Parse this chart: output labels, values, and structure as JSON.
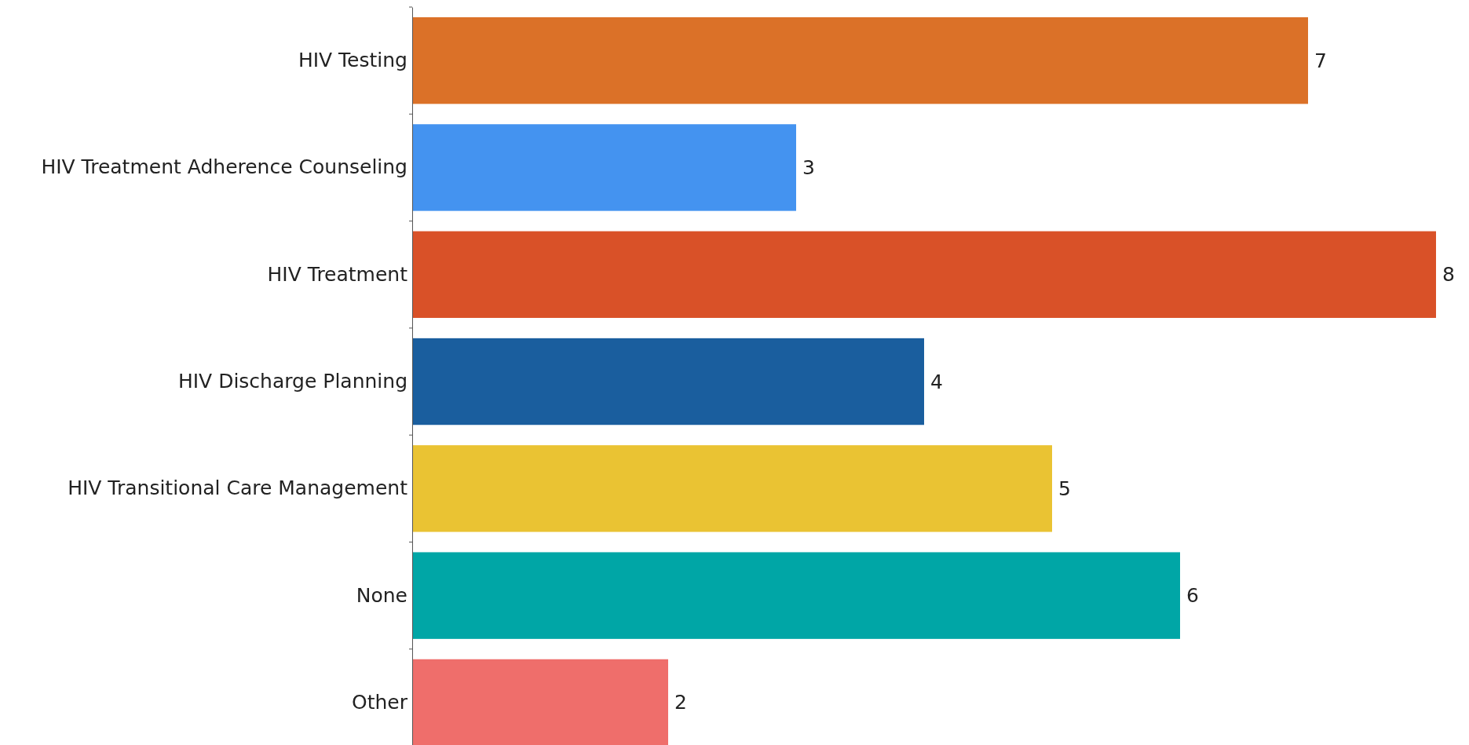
{
  "chart_data": {
    "type": "bar",
    "orientation": "horizontal",
    "data_labels": true,
    "categories": [
      "HIV Testing",
      "HIV Treatment Adherence Counseling",
      "HIV Treatment",
      "HIV Discharge Planning",
      "HIV Transitional Care Management",
      "None",
      "Other"
    ],
    "values": [
      7,
      3,
      8,
      4,
      5,
      6,
      2
    ],
    "colors": [
      "#db7128",
      "#4493f0",
      "#d95128",
      "#1a5e9e",
      "#eac333",
      "#00a6a6",
      "#ef6e6b"
    ]
  }
}
